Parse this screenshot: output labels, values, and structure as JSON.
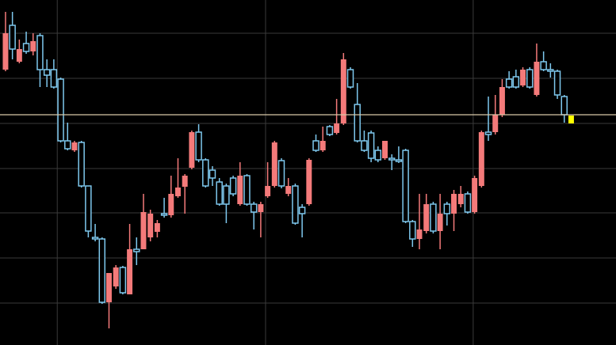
{
  "chart_data": {
    "type": "candlestick",
    "open": [
      348,
      404,
      358,
      381,
      371,
      391,
      348,
      348,
      336,
      258,
      246,
      256,
      201,
      136,
      134,
      54,
      74,
      98,
      64,
      121,
      121,
      136,
      143,
      166,
      164,
      188,
      200,
      224,
      269,
      234,
      221,
      206,
      201,
      211,
      178,
      214,
      178,
      168,
      188,
      201,
      233,
      191,
      201,
      174,
      178,
      258,
      246,
      276,
      268,
      280,
      348,
      304,
      258,
      268,
      246,
      236,
      236,
      234,
      246,
      156,
      134,
      144,
      178,
      144,
      178,
      166,
      178,
      191,
      168,
      201,
      269,
      269,
      291,
      336,
      339,
      328,
      348,
      316,
      358,
      348,
      346,
      314,
      290
    ],
    "high": [
      421,
      421,
      386,
      396,
      394,
      394,
      361,
      361,
      338,
      281,
      258,
      258,
      201,
      153,
      136,
      91,
      101,
      100,
      153,
      136,
      191,
      171,
      158,
      186,
      214,
      236,
      216,
      271,
      279,
      236,
      226,
      211,
      204,
      214,
      231,
      216,
      181,
      181,
      231,
      258,
      236,
      211,
      204,
      178,
      236,
      266,
      276,
      278,
      311,
      369,
      351,
      331,
      271,
      271,
      251,
      258,
      241,
      251,
      248,
      158,
      191,
      191,
      181,
      191,
      181,
      196,
      201,
      194,
      214,
      271,
      314,
      316,
      336,
      346,
      348,
      351,
      351,
      381,
      371,
      356,
      348,
      316,
      290
    ],
    "low": [
      346,
      361,
      356,
      368,
      366,
      326,
      326,
      324,
      256,
      246,
      244,
      199,
      136,
      131,
      52,
      21,
      71,
      64,
      64,
      101,
      121,
      131,
      136,
      161,
      161,
      186,
      166,
      222,
      231,
      199,
      201,
      176,
      154,
      188,
      176,
      176,
      146,
      136,
      186,
      199,
      198,
      188,
      152,
      136,
      176,
      244,
      244,
      264,
      266,
      278,
      324,
      256,
      244,
      231,
      231,
      234,
      221,
      230,
      154,
      124,
      121,
      141,
      141,
      121,
      151,
      144,
      174,
      166,
      166,
      199,
      258,
      266,
      288,
      324,
      324,
      326,
      324,
      314,
      346,
      338,
      311,
      281,
      280
    ],
    "close": [
      394,
      374,
      374,
      371,
      384,
      348,
      341,
      326,
      258,
      248,
      256,
      201,
      144,
      134,
      54,
      91,
      98,
      66,
      121,
      118,
      168,
      166,
      154,
      164,
      191,
      199,
      214,
      269,
      234,
      201,
      211,
      178,
      178,
      191,
      214,
      178,
      168,
      178,
      201,
      256,
      201,
      201,
      154,
      166,
      234,
      246,
      258,
      266,
      280,
      361,
      326,
      258,
      246,
      236,
      234,
      258,
      234,
      232,
      156,
      134,
      146,
      178,
      144,
      166,
      166,
      191,
      191,
      168,
      211,
      269,
      266,
      291,
      326,
      326,
      326,
      348,
      326,
      358,
      348,
      346,
      316,
      291,
      280
    ],
    "up_color": "#f47a7a",
    "down_color": "#7ec8ee",
    "last_color": "#ffff00",
    "price_line": 291,
    "price_line_color": "#d8c8a8",
    "ylim": [
      0,
      436
    ],
    "yticks": [
      53,
      110,
      167,
      223,
      280,
      337,
      394
    ],
    "xlim": [
      -0.8,
      88.5
    ],
    "xticks": [
      7.5,
      37.7,
      67.8
    ],
    "grid": true
  }
}
